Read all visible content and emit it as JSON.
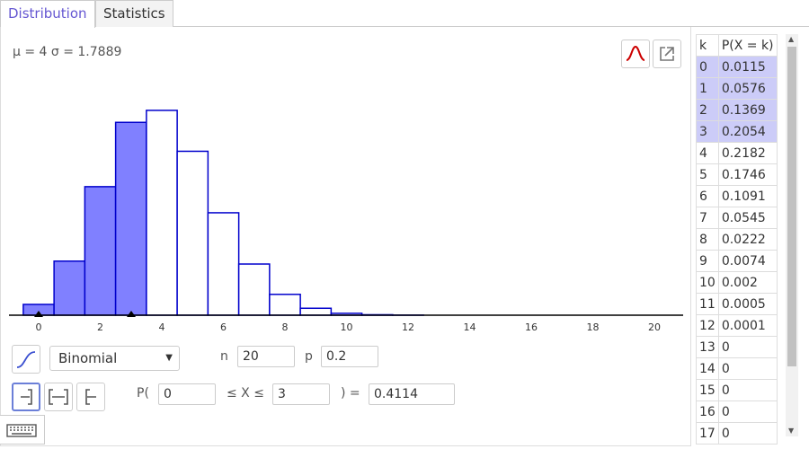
{
  "tabs": [
    {
      "label": "Distribution",
      "active": true
    },
    {
      "label": "Statistics",
      "active": false
    }
  ],
  "summary": "μ = 4 σ = 1.7889",
  "icons": {
    "normal_overlay": "normal-curve-icon",
    "export": "export-icon",
    "cumulative": "cumulative-graph-icon",
    "left_sided": "left-sided-interval-icon",
    "two_sided": "two-sided-interval-icon",
    "right_sided": "right-sided-interval-icon",
    "keyboard": "keyboard-icon"
  },
  "colors": {
    "accent": "#6557d2",
    "bar_fill": "#8080ff",
    "bar_stroke": "#0000cc",
    "highlight": "#ccccf8",
    "curve": "#cc0000"
  },
  "distribution": {
    "selected": "Binomial"
  },
  "params": {
    "n_label": "n",
    "n_value": "20",
    "p_label": "p",
    "p_value": "0.2"
  },
  "probability": {
    "prefix": "P(",
    "low": "0",
    "middle": "≤ X ≤",
    "high": "3",
    "suffix": ") =",
    "result": "0.4114"
  },
  "table": {
    "headers": [
      "k",
      "P(X = k)"
    ],
    "rows": [
      {
        "k": "0",
        "p": "0.0115",
        "highlighted": true
      },
      {
        "k": "1",
        "p": "0.0576",
        "highlighted": true
      },
      {
        "k": "2",
        "p": "0.1369",
        "highlighted": true
      },
      {
        "k": "3",
        "p": "0.2054",
        "highlighted": true
      },
      {
        "k": "4",
        "p": "0.2182",
        "highlighted": false
      },
      {
        "k": "5",
        "p": "0.1746",
        "highlighted": false
      },
      {
        "k": "6",
        "p": "0.1091",
        "highlighted": false
      },
      {
        "k": "7",
        "p": "0.0545",
        "highlighted": false
      },
      {
        "k": "8",
        "p": "0.0222",
        "highlighted": false
      },
      {
        "k": "9",
        "p": "0.0074",
        "highlighted": false
      },
      {
        "k": "10",
        "p": "0.002",
        "highlighted": false
      },
      {
        "k": "11",
        "p": "0.0005",
        "highlighted": false
      },
      {
        "k": "12",
        "p": "0.0001",
        "highlighted": false
      },
      {
        "k": "13",
        "p": "0",
        "highlighted": false
      },
      {
        "k": "14",
        "p": "0",
        "highlighted": false
      },
      {
        "k": "15",
        "p": "0",
        "highlighted": false
      },
      {
        "k": "16",
        "p": "0",
        "highlighted": false
      },
      {
        "k": "17",
        "p": "0",
        "highlighted": false
      }
    ]
  },
  "chart_data": {
    "type": "bar",
    "x": [
      0,
      1,
      2,
      3,
      4,
      5,
      6,
      7,
      8,
      9,
      10,
      11,
      12,
      13,
      14,
      15,
      16,
      17,
      18,
      19,
      20
    ],
    "values": [
      0.0115,
      0.0576,
      0.1369,
      0.2054,
      0.2182,
      0.1746,
      0.1091,
      0.0545,
      0.0222,
      0.0074,
      0.002,
      0.0005,
      0.0001,
      0,
      0,
      0,
      0,
      0,
      0,
      0,
      0
    ],
    "highlighted_range": [
      0,
      3
    ],
    "tick_labels": [
      "0",
      "2",
      "4",
      "6",
      "8",
      "10",
      "12",
      "14",
      "16",
      "18",
      "20"
    ],
    "xlim": [
      -1,
      21
    ],
    "ylim": [
      0,
      0.22
    ],
    "grid": false
  }
}
